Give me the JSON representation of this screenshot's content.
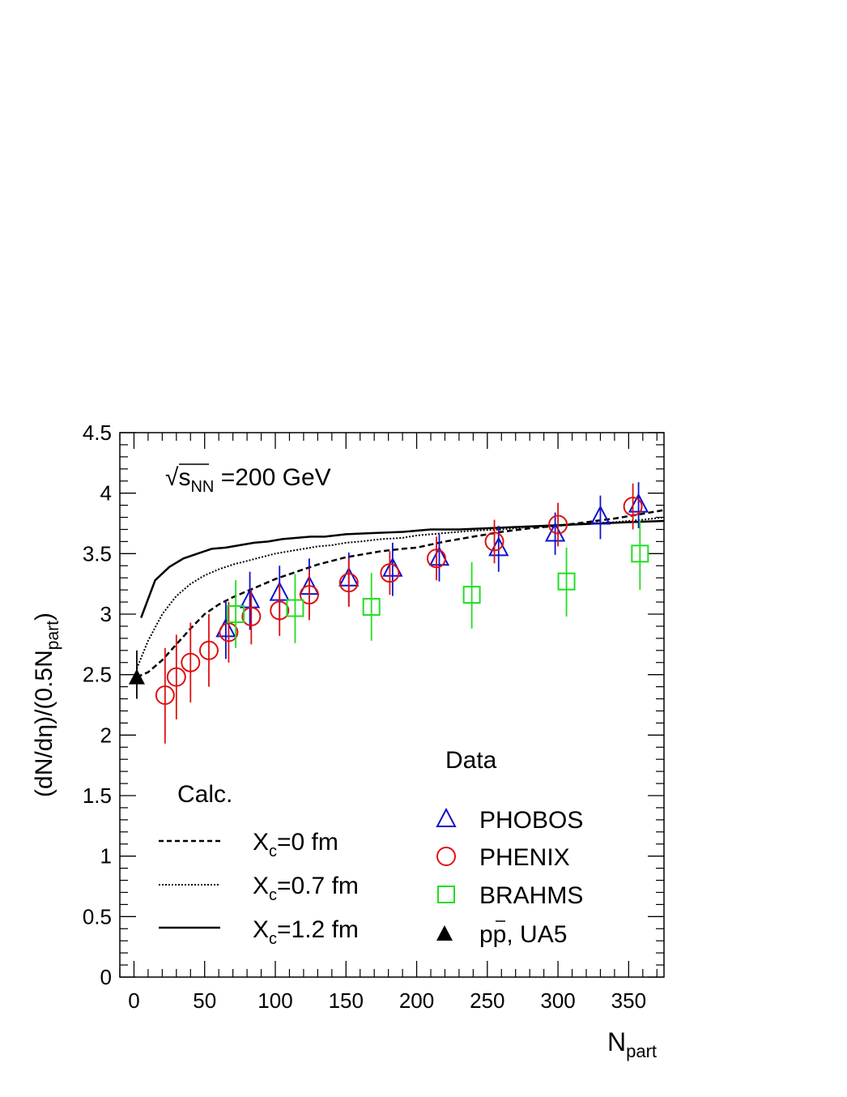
{
  "chart_data": {
    "type": "scatter",
    "title": "",
    "xlabel_main": "N",
    "xlabel_sub": "part",
    "ylabel_main": "(dN/dη)/(0.5N",
    "ylabel_sub": "part",
    "ylabel_end": ")",
    "xlim": [
      -10,
      375
    ],
    "ylim": [
      0,
      4.5
    ],
    "x_ticks": [
      "0",
      "50",
      "100",
      "150",
      "200",
      "250",
      "300",
      "350"
    ],
    "x_tick_values": [
      0,
      50,
      100,
      150,
      200,
      250,
      300,
      350
    ],
    "y_ticks": [
      "0",
      "0.5",
      "1",
      "1.5",
      "2",
      "2.5",
      "3",
      "3.5",
      "4",
      "4.5"
    ],
    "y_tick_values": [
      0,
      0.5,
      1,
      1.5,
      2,
      2.5,
      3,
      3.5,
      4,
      4.5
    ],
    "energy_sqrt": "√",
    "energy_s": "s",
    "energy_sub": "NN",
    "energy_value": " =200 GeV",
    "calc_header": "Calc.",
    "data_header": "Data",
    "calc_series": [
      {
        "name": "X_c=0 fm",
        "label_main": "X",
        "label_sub": "c",
        "label_rest": "=0 fm",
        "style": "dashed",
        "x": [
          2,
          10,
          20,
          30,
          40,
          50,
          60,
          70,
          80,
          90,
          100,
          110,
          120,
          130,
          140,
          150,
          160,
          175,
          190,
          200,
          220,
          240,
          260,
          280,
          300,
          320,
          340,
          360,
          375
        ],
        "y": [
          2.48,
          2.52,
          2.62,
          2.75,
          2.88,
          3.0,
          3.08,
          3.14,
          3.19,
          3.24,
          3.29,
          3.33,
          3.37,
          3.41,
          3.44,
          3.47,
          3.49,
          3.52,
          3.54,
          3.55,
          3.6,
          3.64,
          3.68,
          3.71,
          3.73,
          3.76,
          3.79,
          3.83,
          3.86
        ]
      },
      {
        "name": "X_c=0.7 fm",
        "label_main": "X",
        "label_sub": "c",
        "label_rest": "=0.7 fm",
        "style": "dotted",
        "x": [
          2,
          10,
          20,
          30,
          40,
          50,
          60,
          70,
          80,
          90,
          100,
          110,
          120,
          130,
          140,
          150,
          160,
          175,
          190,
          200,
          220,
          240,
          260,
          280,
          300,
          320,
          340,
          360,
          375
        ],
        "y": [
          2.55,
          2.78,
          3.0,
          3.15,
          3.25,
          3.32,
          3.37,
          3.41,
          3.44,
          3.47,
          3.5,
          3.52,
          3.54,
          3.56,
          3.57,
          3.59,
          3.6,
          3.62,
          3.63,
          3.65,
          3.67,
          3.69,
          3.7,
          3.72,
          3.73,
          3.75,
          3.76,
          3.78,
          3.8
        ]
      },
      {
        "name": "X_c=1.2 fm",
        "label_main": "X",
        "label_sub": "c",
        "label_rest": "=1.2 fm",
        "style": "solid",
        "x": [
          5,
          15,
          25,
          35,
          45,
          55,
          65,
          75,
          85,
          95,
          105,
          115,
          125,
          135,
          150,
          170,
          190,
          210,
          230,
          250,
          270,
          290,
          310,
          330,
          350,
          375
        ],
        "y": [
          2.97,
          3.28,
          3.39,
          3.46,
          3.5,
          3.54,
          3.55,
          3.57,
          3.59,
          3.6,
          3.62,
          3.63,
          3.64,
          3.64,
          3.66,
          3.67,
          3.68,
          3.7,
          3.7,
          3.71,
          3.72,
          3.73,
          3.74,
          3.75,
          3.76,
          3.77
        ]
      }
    ],
    "data_series": [
      {
        "name": "PHOBOS",
        "marker": "open-triangle",
        "color": "#1111cc",
        "points": [
          {
            "x": 65,
            "y": 2.87,
            "lo": 2.63,
            "hi": 3.11
          },
          {
            "x": 82,
            "y": 3.11,
            "lo": 2.87,
            "hi": 3.35
          },
          {
            "x": 103,
            "y": 3.17,
            "lo": 2.94,
            "hi": 3.4
          },
          {
            "x": 124,
            "y": 3.22,
            "lo": 2.98,
            "hi": 3.46
          },
          {
            "x": 152,
            "y": 3.29,
            "lo": 3.07,
            "hi": 3.51
          },
          {
            "x": 183,
            "y": 3.37,
            "lo": 3.15,
            "hi": 3.59
          },
          {
            "x": 216,
            "y": 3.46,
            "lo": 3.27,
            "hi": 3.66
          },
          {
            "x": 258,
            "y": 3.54,
            "lo": 3.35,
            "hi": 3.73
          },
          {
            "x": 298,
            "y": 3.66,
            "lo": 3.49,
            "hi": 3.84
          },
          {
            "x": 330,
            "y": 3.8,
            "lo": 3.62,
            "hi": 3.98
          },
          {
            "x": 357,
            "y": 3.9,
            "lo": 3.71,
            "hi": 4.09
          }
        ]
      },
      {
        "name": "PHENIX",
        "marker": "open-circle",
        "color": "#dd1111",
        "points": [
          {
            "x": 22,
            "y": 2.33,
            "lo": 1.93,
            "hi": 2.72
          },
          {
            "x": 30,
            "y": 2.48,
            "lo": 2.13,
            "hi": 2.83
          },
          {
            "x": 40,
            "y": 2.6,
            "lo": 2.27,
            "hi": 2.93
          },
          {
            "x": 53,
            "y": 2.7,
            "lo": 2.4,
            "hi": 3.0
          },
          {
            "x": 67,
            "y": 2.85,
            "lo": 2.6,
            "hi": 3.1
          },
          {
            "x": 83,
            "y": 2.98,
            "lo": 2.75,
            "hi": 3.2
          },
          {
            "x": 103,
            "y": 3.03,
            "lo": 2.82,
            "hi": 3.25
          },
          {
            "x": 124,
            "y": 3.16,
            "lo": 2.95,
            "hi": 3.37
          },
          {
            "x": 152,
            "y": 3.26,
            "lo": 3.06,
            "hi": 3.46
          },
          {
            "x": 181,
            "y": 3.34,
            "lo": 3.16,
            "hi": 3.52
          },
          {
            "x": 214,
            "y": 3.46,
            "lo": 3.28,
            "hi": 3.64
          },
          {
            "x": 255,
            "y": 3.6,
            "lo": 3.42,
            "hi": 3.78
          },
          {
            "x": 300,
            "y": 3.74,
            "lo": 3.56,
            "hi": 3.92
          },
          {
            "x": 353,
            "y": 3.89,
            "lo": 3.7,
            "hi": 4.08
          }
        ]
      },
      {
        "name": "BRAHMS",
        "marker": "open-square",
        "color": "#22dd22",
        "points": [
          {
            "x": 72,
            "y": 3.0,
            "lo": 2.72,
            "hi": 3.28
          },
          {
            "x": 114,
            "y": 3.05,
            "lo": 2.76,
            "hi": 3.33
          },
          {
            "x": 168,
            "y": 3.06,
            "lo": 2.78,
            "hi": 3.34
          },
          {
            "x": 239,
            "y": 3.16,
            "lo": 2.88,
            "hi": 3.43
          },
          {
            "x": 306,
            "y": 3.27,
            "lo": 2.98,
            "hi": 3.55
          },
          {
            "x": 358,
            "y": 3.5,
            "lo": 3.2,
            "hi": 3.78
          }
        ]
      },
      {
        "name": "pp̄, UA5",
        "label_main": "pp",
        "label_rest": ", UA5",
        "marker": "filled-triangle",
        "color": "#000000",
        "points": [
          {
            "x": 2,
            "y": 2.48,
            "lo": 2.3,
            "hi": 2.7
          }
        ]
      }
    ]
  }
}
